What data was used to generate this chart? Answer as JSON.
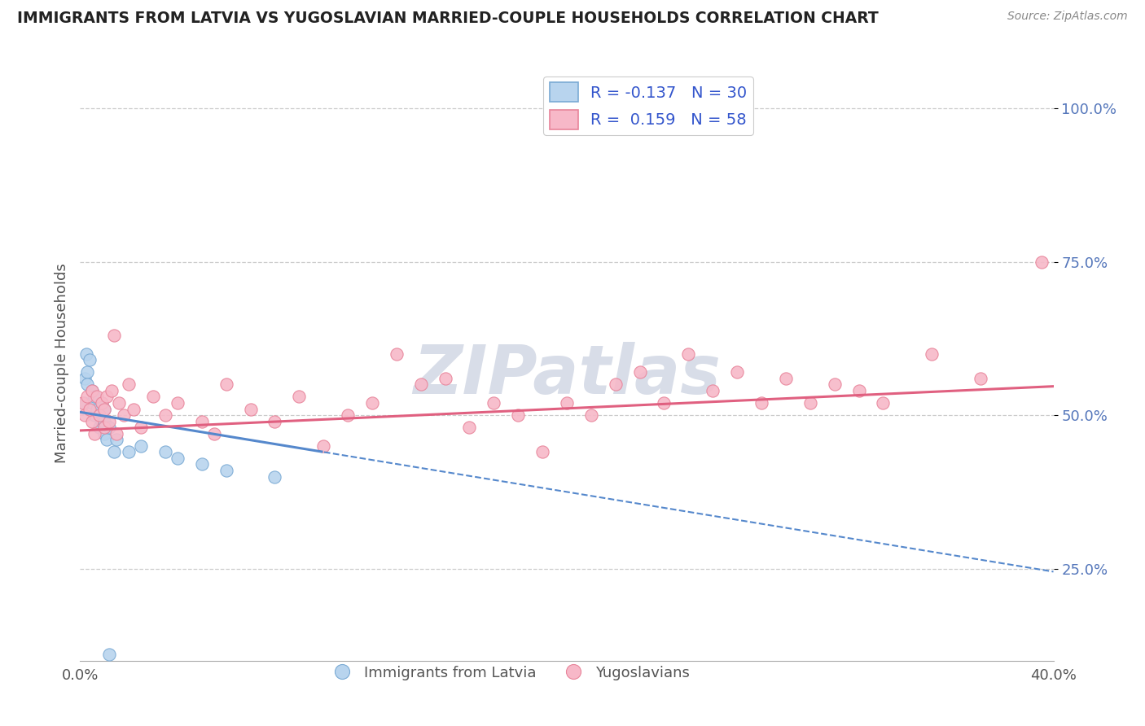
{
  "title": "IMMIGRANTS FROM LATVIA VS YUGOSLAVIAN MARRIED-COUPLE HOUSEHOLDS CORRELATION CHART",
  "source": "Source: ZipAtlas.com",
  "ylabel": "Married-couple Households",
  "xlim": [
    0.0,
    40.0
  ],
  "ylim": [
    10.0,
    107.0
  ],
  "yticks": [
    25.0,
    50.0,
    75.0,
    100.0
  ],
  "ytick_labels": [
    "25.0%",
    "50.0%",
    "75.0%",
    "100.0%"
  ],
  "watermark": "ZIPatlas",
  "legend_label1": "R = -0.137   N = 30",
  "legend_label2": "R =  0.159   N = 58",
  "series1_fill": "#b8d4ee",
  "series2_fill": "#f7b8c8",
  "series1_edge": "#7aaad4",
  "series2_edge": "#e8849a",
  "line1_color": "#5588cc",
  "line2_color": "#e06080",
  "background_color": "#ffffff",
  "grid_color": "#cccccc",
  "title_color": "#222222",
  "watermark_color": "#d8dde8",
  "blue_x": [
    0.15,
    0.2,
    0.25,
    0.3,
    0.3,
    0.4,
    0.5,
    0.5,
    0.6,
    0.6,
    0.7,
    0.8,
    0.8,
    0.9,
    0.9,
    1.0,
    1.0,
    1.0,
    1.1,
    1.2,
    1.4,
    1.5,
    2.0,
    2.5,
    3.5,
    4.0,
    5.0,
    6.0,
    8.0,
    1.2
  ],
  "blue_y": [
    52.0,
    56.0,
    60.0,
    57.0,
    55.0,
    59.0,
    52.0,
    54.0,
    50.0,
    53.0,
    51.0,
    48.0,
    50.0,
    49.0,
    52.0,
    47.0,
    49.0,
    51.0,
    46.0,
    48.0,
    44.0,
    46.0,
    44.0,
    45.0,
    44.0,
    43.0,
    42.0,
    41.0,
    40.0,
    11.0
  ],
  "pink_x": [
    0.1,
    0.2,
    0.3,
    0.4,
    0.5,
    0.5,
    0.6,
    0.7,
    0.8,
    0.9,
    1.0,
    1.0,
    1.1,
    1.2,
    1.3,
    1.5,
    1.6,
    1.8,
    2.0,
    2.2,
    2.5,
    3.0,
    3.5,
    4.0,
    5.0,
    5.5,
    6.0,
    7.0,
    8.0,
    9.0,
    10.0,
    11.0,
    12.0,
    13.0,
    14.0,
    15.0,
    16.0,
    17.0,
    18.0,
    19.0,
    20.0,
    21.0,
    22.0,
    23.0,
    24.0,
    25.0,
    26.0,
    27.0,
    28.0,
    29.0,
    30.0,
    31.0,
    32.0,
    33.0,
    35.0,
    37.0,
    39.5,
    1.4
  ],
  "pink_y": [
    52.0,
    50.0,
    53.0,
    51.0,
    49.0,
    54.0,
    47.0,
    53.0,
    50.0,
    52.0,
    48.0,
    51.0,
    53.0,
    49.0,
    54.0,
    47.0,
    52.0,
    50.0,
    55.0,
    51.0,
    48.0,
    53.0,
    50.0,
    52.0,
    49.0,
    47.0,
    55.0,
    51.0,
    49.0,
    53.0,
    45.0,
    50.0,
    52.0,
    60.0,
    55.0,
    56.0,
    48.0,
    52.0,
    50.0,
    44.0,
    52.0,
    50.0,
    55.0,
    57.0,
    52.0,
    60.0,
    54.0,
    57.0,
    52.0,
    56.0,
    52.0,
    55.0,
    54.0,
    52.0,
    60.0,
    56.0,
    75.0,
    63.0
  ],
  "blue_line_x0": 0.0,
  "blue_line_y0": 50.5,
  "blue_line_slope": -0.65,
  "blue_solid_end": 10.0,
  "pink_line_x0": 0.0,
  "pink_line_y0": 47.5,
  "pink_line_slope": 0.18
}
